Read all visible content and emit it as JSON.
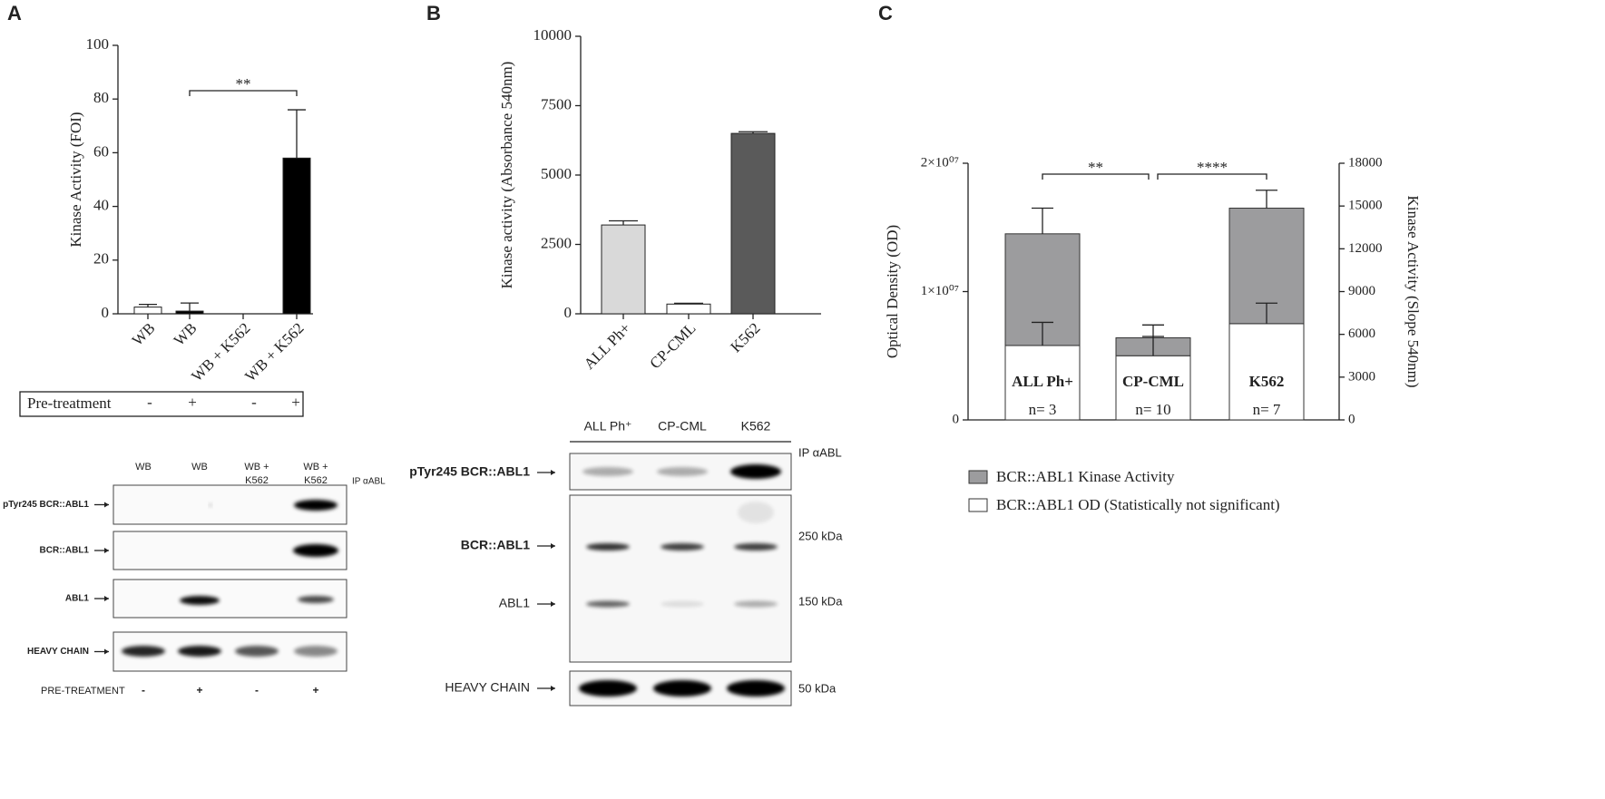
{
  "panel_labels": [
    "A",
    "B",
    "C"
  ],
  "chart_data": [
    {
      "type": "bar",
      "y_label": "Kinase Activity (FOI)",
      "categories": [
        "WB",
        "WB",
        "WB + K562",
        "WB + K562"
      ],
      "series": [
        {
          "values": [
            2.5,
            1,
            0,
            58
          ],
          "errors": [
            1,
            3,
            0,
            18
          ],
          "colors": [
            "#ffffff",
            "#000000",
            "#000000",
            "#000000"
          ]
        }
      ],
      "ylim": [
        0,
        100
      ],
      "yticks": [
        0,
        20,
        40,
        60,
        80,
        100
      ],
      "significance": [
        {
          "from": 1,
          "to": 3,
          "label": "**"
        }
      ]
    },
    {
      "type": "bar",
      "y_label": "Kinase activity (Absorbance 540nm)",
      "categories": [
        "ALL Ph+",
        "CP-CML",
        "K562"
      ],
      "series": [
        {
          "values": [
            3200,
            350,
            6500
          ],
          "errors": [
            150,
            30,
            60
          ],
          "colors": [
            "#d9d9d9",
            "#ffffff",
            "#5a5a5a"
          ]
        }
      ],
      "ylim": [
        0,
        10000
      ],
      "yticks": [
        0,
        2500,
        5000,
        7500,
        10000
      ]
    },
    {
      "type": "stacked_bar",
      "y_label": "Optical Density (OD)",
      "y2_label": "Kinase Activity (Slope 540nm)",
      "categories": [
        "ALL Ph+",
        "CP-CML",
        "K562"
      ],
      "sample_sizes": [
        "n= 3",
        "n= 10",
        "n= 7"
      ],
      "series": [
        {
          "name": "BCR::ABL1 OD (Statistically not significant)",
          "color": "#ffffff",
          "values": [
            5800000,
            5000000,
            7500000
          ],
          "errors": [
            1800000,
            1500000,
            1600000
          ]
        },
        {
          "name": "BCR::ABL1 Kinase Activity",
          "color": "#9c9c9e",
          "values": [
            8700000,
            1400000,
            9000000
          ],
          "errors": [
            2000000,
            1000000,
            1400000
          ]
        }
      ],
      "ylim": [
        0,
        20000000
      ],
      "yticks": [
        0,
        {
          "value": 10000000,
          "label": "1×10⁰⁷"
        },
        {
          "value": 20000000,
          "label": "2×10⁰⁷"
        }
      ],
      "y2lim": [
        0,
        18000
      ],
      "y2ticks": [
        0,
        3000,
        6000,
        9000,
        12000,
        15000,
        18000
      ],
      "significance": [
        {
          "from": 0,
          "to": 1,
          "label": "**"
        },
        {
          "from": 1,
          "to": 2,
          "label": "****"
        }
      ]
    }
  ],
  "pretreatment_table": {
    "label": "Pre-treatment",
    "signs": [
      "-",
      "+",
      "-",
      "+"
    ]
  },
  "blot_a": {
    "columns": [
      [
        "WB"
      ],
      [
        "WB"
      ],
      [
        "WB +",
        "K562"
      ],
      [
        "WB +",
        "K562"
      ]
    ],
    "ip_label": "IP αABL",
    "rows": [
      "pTyr245 BCR::ABL1",
      "BCR::ABL1",
      "ABL1",
      "HEAVY CHAIN"
    ],
    "footer_label": "PRE-TREATMENT",
    "footer_signs": [
      "-",
      "+",
      "-",
      "+"
    ]
  },
  "blot_b": {
    "columns": [
      "ALL Ph⁺",
      "CP-CML",
      "K562"
    ],
    "ip_label": "IP αABL",
    "rows": [
      "pTyr245 BCR::ABL1",
      "BCR::ABL1",
      "ABL1",
      "HEAVY CHAIN"
    ],
    "markers": [
      "250 kDa",
      "150 kDa",
      "50 kDa"
    ]
  }
}
